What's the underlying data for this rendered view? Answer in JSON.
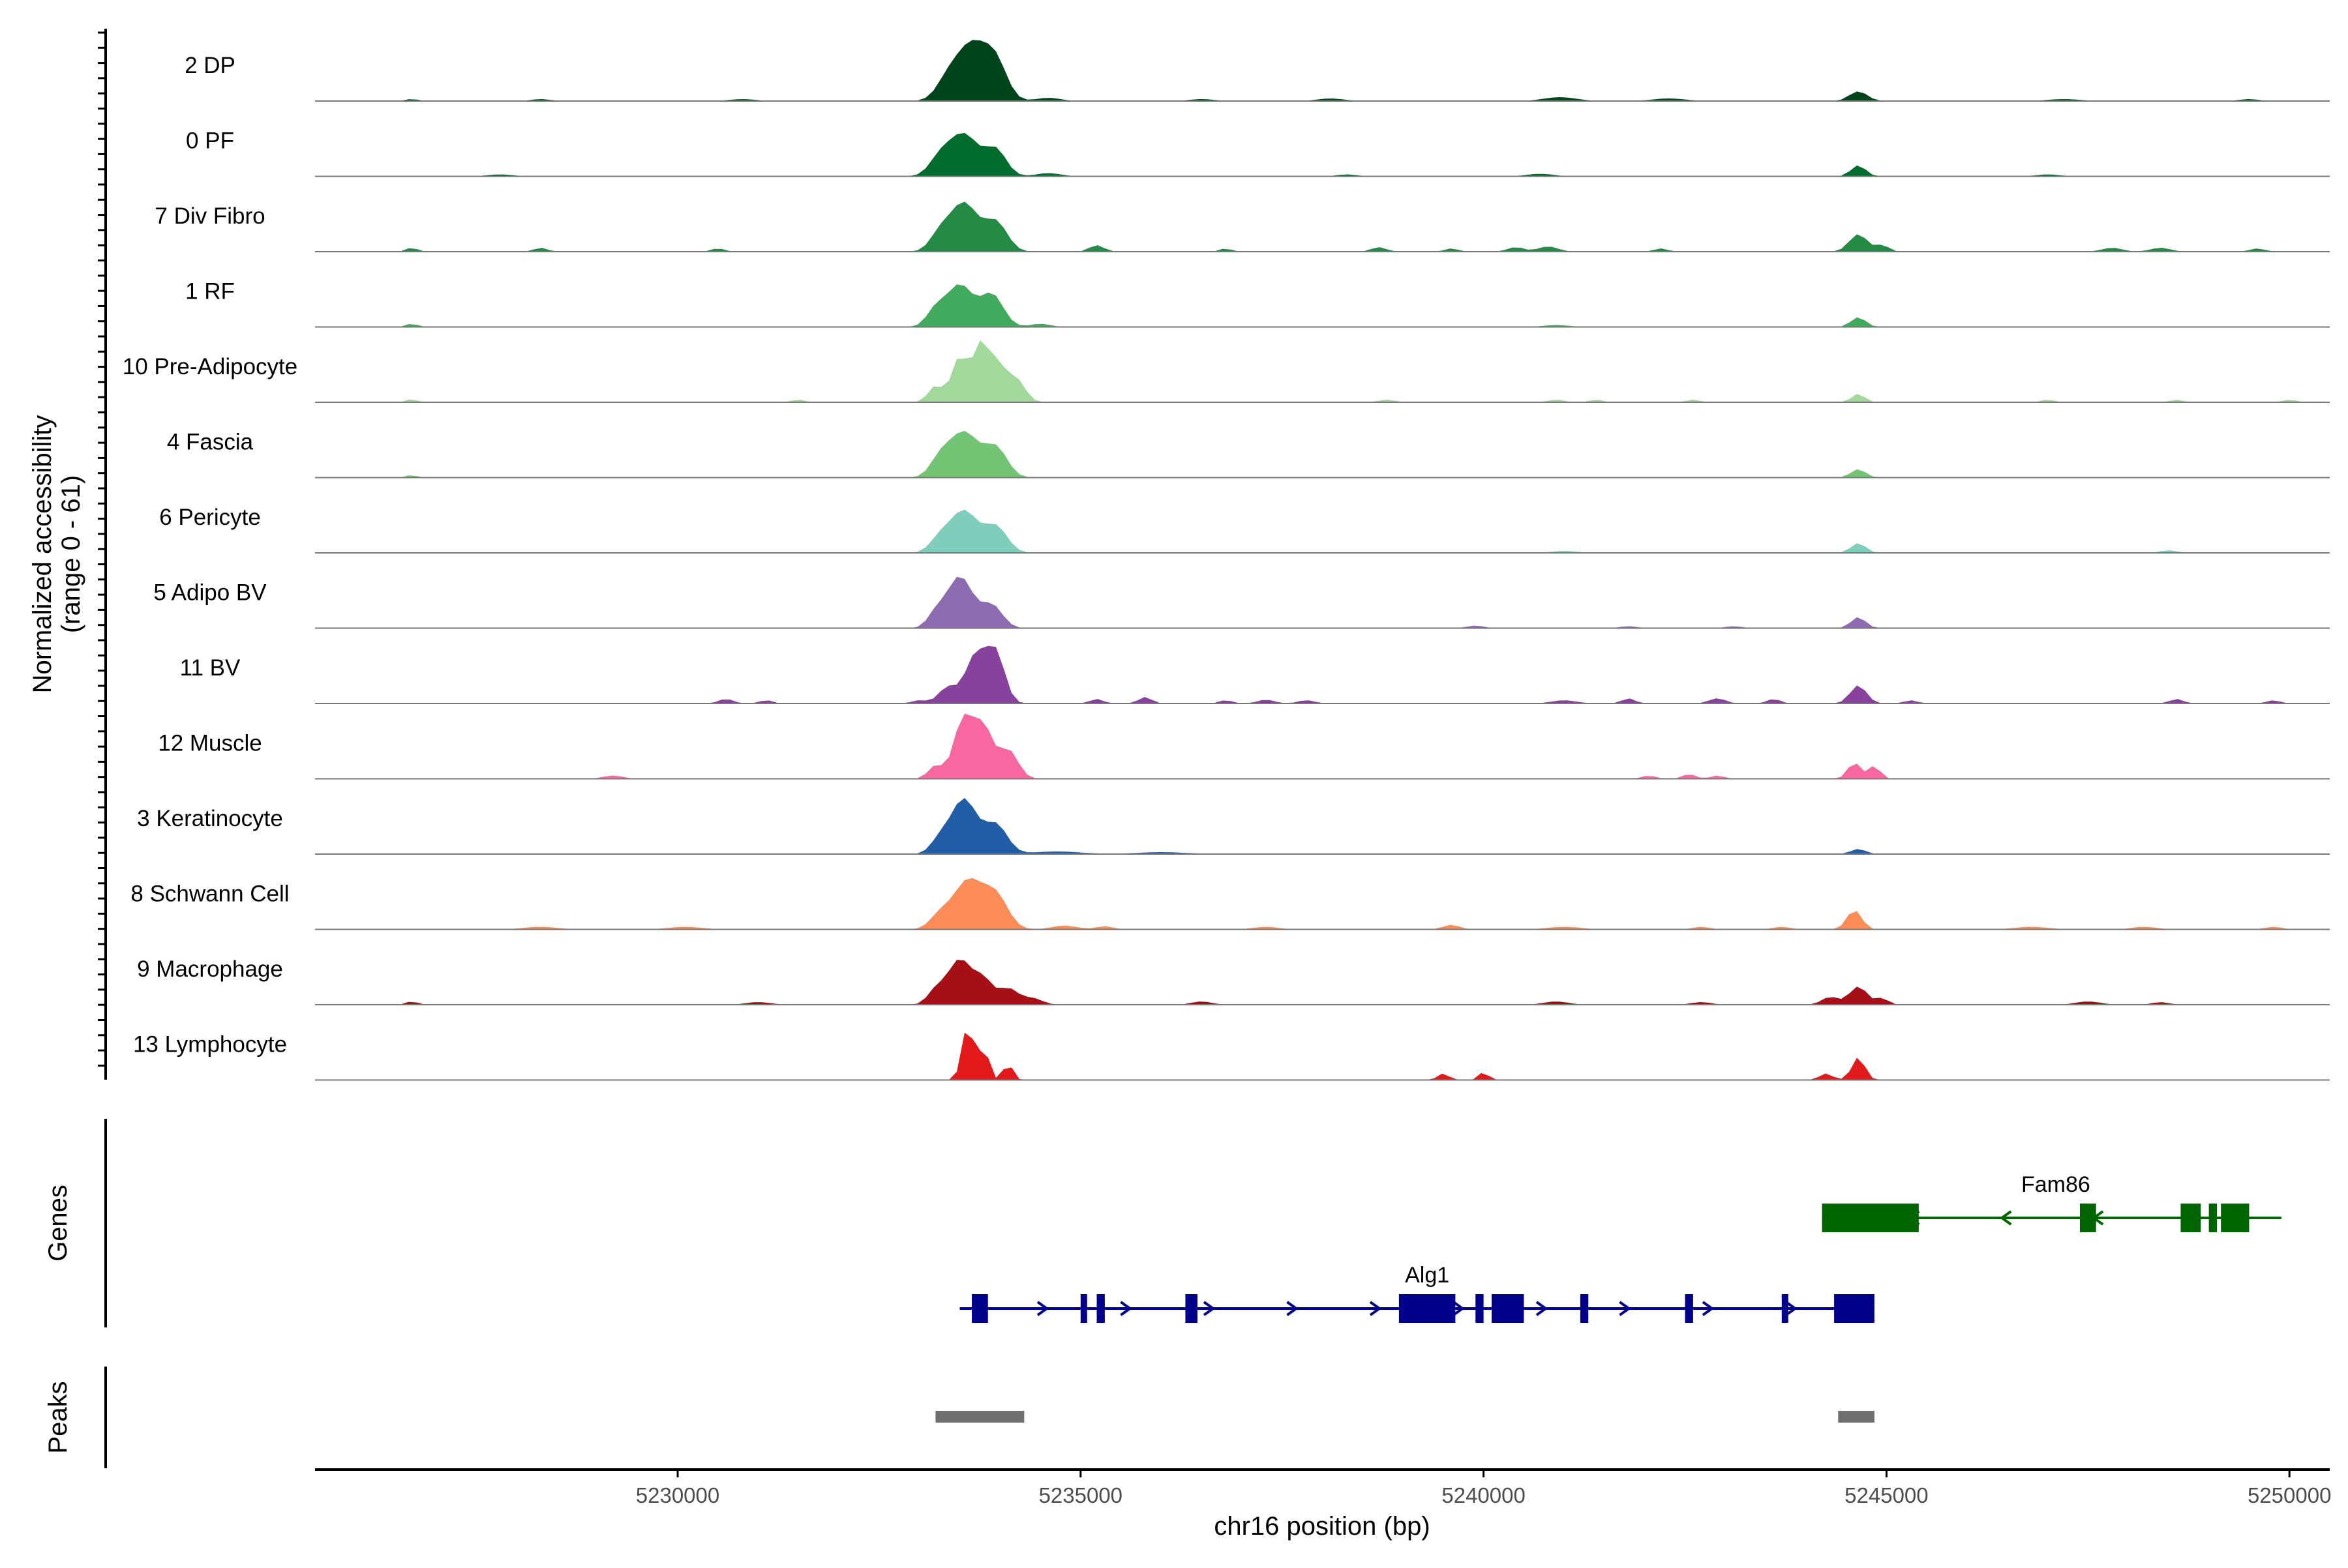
{
  "chart_data": {
    "type": "area",
    "ylabel_line1": "Normalized accessibility",
    "ylabel_line2": "(range 0 - 61)",
    "y_range": [
      0,
      61
    ],
    "xlabel": "chr16 position (bp)",
    "xlim": [
      5225500,
      5250500
    ],
    "x_ticks": [
      {
        "value": 5230000,
        "label": "5230000"
      },
      {
        "value": 5235000,
        "label": "5235000"
      },
      {
        "value": 5240000,
        "label": "5240000"
      },
      {
        "value": 5245000,
        "label": "5245000"
      },
      {
        "value": 5250000,
        "label": "5250000"
      }
    ],
    "panel_labels": {
      "genes": "Genes",
      "peaks": "Peaks"
    },
    "tracks": [
      {
        "name": "2 DP",
        "color": "#00441b",
        "peaks": [
          [
            5233650,
            0.85,
            180
          ],
          [
            5233350,
            0.3,
            140
          ],
          [
            5233950,
            0.55,
            140
          ],
          [
            5244650,
            0.15,
            110
          ],
          [
            5240950,
            0.06,
            200
          ],
          [
            5238100,
            0.04,
            160
          ],
          [
            5236500,
            0.03,
            150
          ],
          [
            5242300,
            0.04,
            200
          ],
          [
            5247200,
            0.03,
            200
          ],
          [
            5230800,
            0.03,
            160
          ],
          [
            5226700,
            0.03,
            80
          ],
          [
            5228300,
            0.03,
            120
          ],
          [
            5249500,
            0.03,
            120
          ],
          [
            5234600,
            0.05,
            150
          ]
        ]
      },
      {
        "name": "0 PF",
        "color": "#006d2c",
        "peaks": [
          [
            5233550,
            0.65,
            180
          ],
          [
            5233250,
            0.25,
            130
          ],
          [
            5233950,
            0.4,
            130
          ],
          [
            5244650,
            0.17,
            90
          ],
          [
            5238300,
            0.03,
            120
          ],
          [
            5240700,
            0.04,
            160
          ],
          [
            5247000,
            0.03,
            140
          ],
          [
            5227800,
            0.03,
            150
          ],
          [
            5234600,
            0.05,
            150
          ]
        ]
      },
      {
        "name": "7 Div Fibro",
        "color": "#238b45",
        "peaks": [
          [
            5233550,
            0.75,
            170
          ],
          [
            5233950,
            0.45,
            140
          ],
          [
            5233250,
            0.25,
            120
          ],
          [
            5244650,
            0.27,
            110
          ],
          [
            5244950,
            0.1,
            80
          ],
          [
            5226700,
            0.06,
            70
          ],
          [
            5228300,
            0.06,
            80
          ],
          [
            5230500,
            0.05,
            80
          ],
          [
            5235200,
            0.1,
            90
          ],
          [
            5236800,
            0.05,
            70
          ],
          [
            5238700,
            0.07,
            90
          ],
          [
            5239600,
            0.05,
            80
          ],
          [
            5240400,
            0.07,
            100
          ],
          [
            5240800,
            0.08,
            120
          ],
          [
            5242200,
            0.05,
            80
          ],
          [
            5247800,
            0.06,
            120
          ],
          [
            5248400,
            0.06,
            120
          ],
          [
            5249600,
            0.05,
            90
          ]
        ]
      },
      {
        "name": "1 RF",
        "color": "#41ab5d",
        "peaks": [
          [
            5233500,
            0.65,
            160
          ],
          [
            5233900,
            0.5,
            140
          ],
          [
            5233200,
            0.25,
            110
          ],
          [
            5244650,
            0.15,
            90
          ],
          [
            5226700,
            0.05,
            70
          ],
          [
            5234500,
            0.05,
            120
          ],
          [
            5240900,
            0.03,
            150
          ]
        ]
      },
      {
        "name": "10 Pre-Adipocyte",
        "color": "#a1d99b",
        "peaks": [
          [
            5233500,
            0.7,
            100
          ],
          [
            5233750,
            0.8,
            90
          ],
          [
            5233950,
            0.6,
            110
          ],
          [
            5234200,
            0.35,
            110
          ],
          [
            5233200,
            0.25,
            90
          ],
          [
            5244650,
            0.13,
            80
          ],
          [
            5226700,
            0.05,
            60
          ],
          [
            5231500,
            0.04,
            80
          ],
          [
            5238800,
            0.04,
            100
          ],
          [
            5240900,
            0.04,
            100
          ],
          [
            5241400,
            0.04,
            80
          ],
          [
            5242600,
            0.04,
            80
          ],
          [
            5247000,
            0.04,
            80
          ],
          [
            5248600,
            0.04,
            80
          ],
          [
            5250000,
            0.04,
            80
          ]
        ]
      },
      {
        "name": "4 Fascia",
        "color": "#74c476",
        "peaks": [
          [
            5233550,
            0.7,
            180
          ],
          [
            5233950,
            0.45,
            140
          ],
          [
            5233250,
            0.25,
            120
          ],
          [
            5244650,
            0.13,
            90
          ],
          [
            5226700,
            0.04,
            60
          ]
        ]
      },
      {
        "name": "6 Pericyte",
        "color": "#7fcdbb",
        "peaks": [
          [
            5233550,
            0.65,
            170
          ],
          [
            5233950,
            0.4,
            140
          ],
          [
            5233250,
            0.2,
            120
          ],
          [
            5244650,
            0.15,
            90
          ],
          [
            5248500,
            0.04,
            100
          ],
          [
            5241000,
            0.03,
            150
          ]
        ]
      },
      {
        "name": "5 Adipo BV",
        "color": "#8c6bb1",
        "peaks": [
          [
            5233500,
            0.8,
            160
          ],
          [
            5233900,
            0.35,
            130
          ],
          [
            5233200,
            0.2,
            100
          ],
          [
            5244650,
            0.17,
            90
          ],
          [
            5239900,
            0.04,
            100
          ],
          [
            5241800,
            0.03,
            100
          ],
          [
            5243100,
            0.03,
            100
          ]
        ]
      },
      {
        "name": "11 BV",
        "color": "#88419d",
        "peaks": [
          [
            5233700,
            0.75,
            130
          ],
          [
            5233950,
            0.75,
            110
          ],
          [
            5233350,
            0.25,
            110
          ],
          [
            5244650,
            0.28,
            100
          ],
          [
            5230600,
            0.07,
            90
          ],
          [
            5231100,
            0.05,
            80
          ],
          [
            5233000,
            0.05,
            90
          ],
          [
            5235200,
            0.07,
            80
          ],
          [
            5235800,
            0.1,
            80
          ],
          [
            5236800,
            0.05,
            80
          ],
          [
            5237300,
            0.06,
            100
          ],
          [
            5237800,
            0.05,
            100
          ],
          [
            5241000,
            0.05,
            150
          ],
          [
            5241800,
            0.08,
            80
          ],
          [
            5242900,
            0.08,
            100
          ],
          [
            5243600,
            0.07,
            80
          ],
          [
            5245300,
            0.05,
            80
          ],
          [
            5248600,
            0.07,
            80
          ],
          [
            5249800,
            0.05,
            80
          ]
        ]
      },
      {
        "name": "12 Muscle",
        "color": "#f768a1",
        "peaks": [
          [
            5233550,
            0.95,
            120
          ],
          [
            5233800,
            0.75,
            110
          ],
          [
            5234100,
            0.45,
            120
          ],
          [
            5233200,
            0.2,
            90
          ],
          [
            5244600,
            0.25,
            80
          ],
          [
            5244850,
            0.2,
            70
          ],
          [
            5229200,
            0.05,
            120
          ],
          [
            5242050,
            0.05,
            80
          ],
          [
            5242550,
            0.07,
            80
          ],
          [
            5242900,
            0.05,
            80
          ]
        ]
      },
      {
        "name": "3 Keratinocyte",
        "color": "#225ea8",
        "peaks": [
          [
            5233550,
            0.85,
            160
          ],
          [
            5233950,
            0.45,
            140
          ],
          [
            5233250,
            0.2,
            110
          ],
          [
            5244650,
            0.08,
            90
          ],
          [
            5234700,
            0.04,
            300
          ],
          [
            5236000,
            0.03,
            300
          ]
        ]
      },
      {
        "name": "8 Schwann Cell",
        "color": "#fc8d59",
        "peaks": [
          [
            5233600,
            0.75,
            180
          ],
          [
            5233950,
            0.5,
            150
          ],
          [
            5233250,
            0.2,
            120
          ],
          [
            5244600,
            0.3,
            90
          ],
          [
            5228300,
            0.04,
            200
          ],
          [
            5230100,
            0.04,
            200
          ],
          [
            5234800,
            0.06,
            150
          ],
          [
            5235300,
            0.05,
            100
          ],
          [
            5237300,
            0.04,
            150
          ],
          [
            5239600,
            0.07,
            100
          ],
          [
            5241000,
            0.04,
            200
          ],
          [
            5242700,
            0.04,
            100
          ],
          [
            5243700,
            0.04,
            100
          ],
          [
            5246800,
            0.04,
            200
          ],
          [
            5248200,
            0.04,
            150
          ],
          [
            5249800,
            0.04,
            100
          ]
        ]
      },
      {
        "name": "9 Macrophage",
        "color": "#a50f15",
        "peaks": [
          [
            5233500,
            0.7,
            150
          ],
          [
            5233800,
            0.35,
            110
          ],
          [
            5234100,
            0.25,
            120
          ],
          [
            5234400,
            0.1,
            120
          ],
          [
            5233200,
            0.2,
            100
          ],
          [
            5244650,
            0.28,
            110
          ],
          [
            5244300,
            0.12,
            100
          ],
          [
            5244950,
            0.1,
            70
          ],
          [
            5226700,
            0.05,
            70
          ],
          [
            5231000,
            0.04,
            150
          ],
          [
            5236500,
            0.05,
            120
          ],
          [
            5240900,
            0.05,
            150
          ],
          [
            5242700,
            0.04,
            120
          ],
          [
            5247500,
            0.05,
            150
          ],
          [
            5248400,
            0.04,
            100
          ]
        ]
      },
      {
        "name": "13 Lymphocyte",
        "color": "#e31a1c",
        "peaks": [
          [
            5233600,
            0.85,
            70
          ],
          [
            5233800,
            0.5,
            60
          ],
          [
            5234100,
            0.25,
            60
          ],
          [
            5239500,
            0.1,
            70
          ],
          [
            5240000,
            0.12,
            60
          ],
          [
            5244250,
            0.1,
            80
          ],
          [
            5244650,
            0.35,
            80
          ]
        ]
      }
    ],
    "genes": [
      {
        "name": "Fam86",
        "strand": "-",
        "color": "#006400",
        "start": 5244200,
        "end": 5249900,
        "exons": [
          [
            5244200,
            5245400
          ],
          [
            5247400,
            5247600
          ],
          [
            5248650,
            5248900
          ],
          [
            5249000,
            5249100
          ],
          [
            5249150,
            5249500
          ]
        ]
      },
      {
        "name": "Alg1",
        "strand": "+",
        "color": "#00008b",
        "start": 5233500,
        "end": 5244850,
        "exons": [
          [
            5233650,
            5233850
          ],
          [
            5235000,
            5235050
          ],
          [
            5235200,
            5235300
          ],
          [
            5236300,
            5236450
          ],
          [
            5238950,
            5239650
          ],
          [
            5239900,
            5240000
          ],
          [
            5240100,
            5240500
          ],
          [
            5241200,
            5241300
          ],
          [
            5242500,
            5242600
          ],
          [
            5243700,
            5243750
          ],
          [
            5244350,
            5244850
          ]
        ]
      }
    ],
    "peaks": [
      [
        5233200,
        5234300
      ],
      [
        5244400,
        5244850
      ]
    ]
  }
}
